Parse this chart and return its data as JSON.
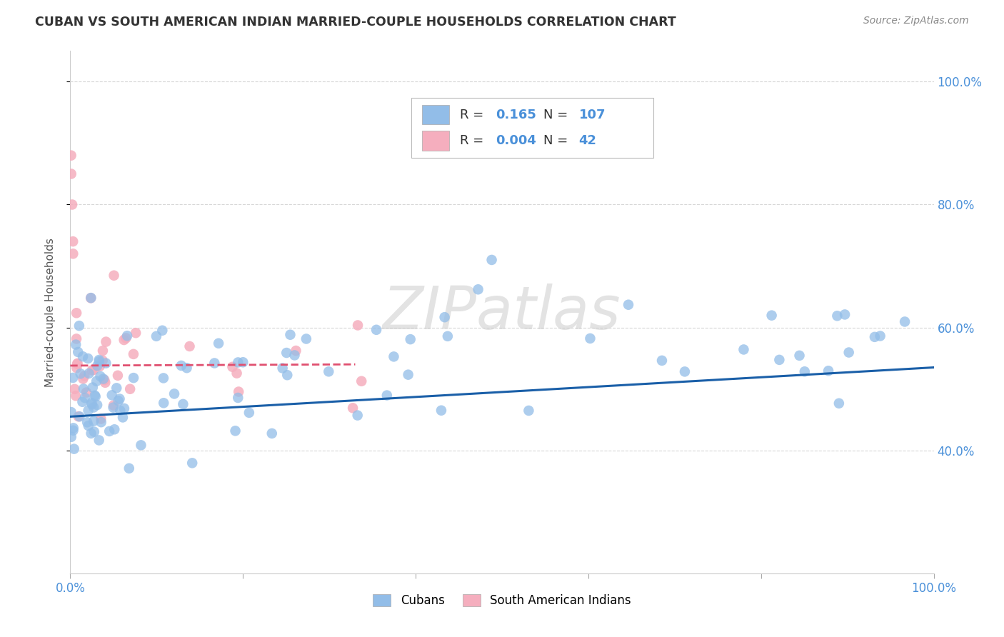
{
  "title": "CUBAN VS SOUTH AMERICAN INDIAN MARRIED-COUPLE HOUSEHOLDS CORRELATION CHART",
  "source": "Source: ZipAtlas.com",
  "ylabel": "Married-couple Households",
  "legend_cubans_R": "0.165",
  "legend_cubans_N": "107",
  "legend_indians_R": "0.004",
  "legend_indians_N": "42",
  "legend_label_cubans": "Cubans",
  "legend_label_indians": "South American Indians",
  "watermark": "ZIPatlas",
  "blue_dot_color": "#92BDE8",
  "pink_dot_color": "#F5AEBE",
  "line_blue_color": "#1A5FA8",
  "line_pink_color": "#E05070",
  "legend_R_color": "#4A90D9",
  "legend_N_color": "#333333",
  "title_color": "#333333",
  "source_color": "#888888",
  "tick_color": "#4A90D9",
  "ylabel_color": "#555555",
  "grid_color": "#CCCCCC",
  "background_color": "#FFFFFF",
  "xlim": [
    0.0,
    1.0
  ],
  "ylim": [
    0.2,
    1.05
  ],
  "yticks": [
    0.4,
    0.6,
    0.8,
    1.0
  ],
  "ytick_labels": [
    "40.0%",
    "60.0%",
    "80.0%",
    "100.0%"
  ],
  "xtick_labels_show": [
    "0.0%",
    "100.0%"
  ],
  "blue_line_x": [
    0.0,
    1.0
  ],
  "blue_line_y_start": 0.455,
  "blue_line_y_end": 0.535,
  "pink_line_x": [
    0.0,
    0.33
  ],
  "pink_line_y_start": 0.538,
  "pink_line_y_end": 0.54
}
